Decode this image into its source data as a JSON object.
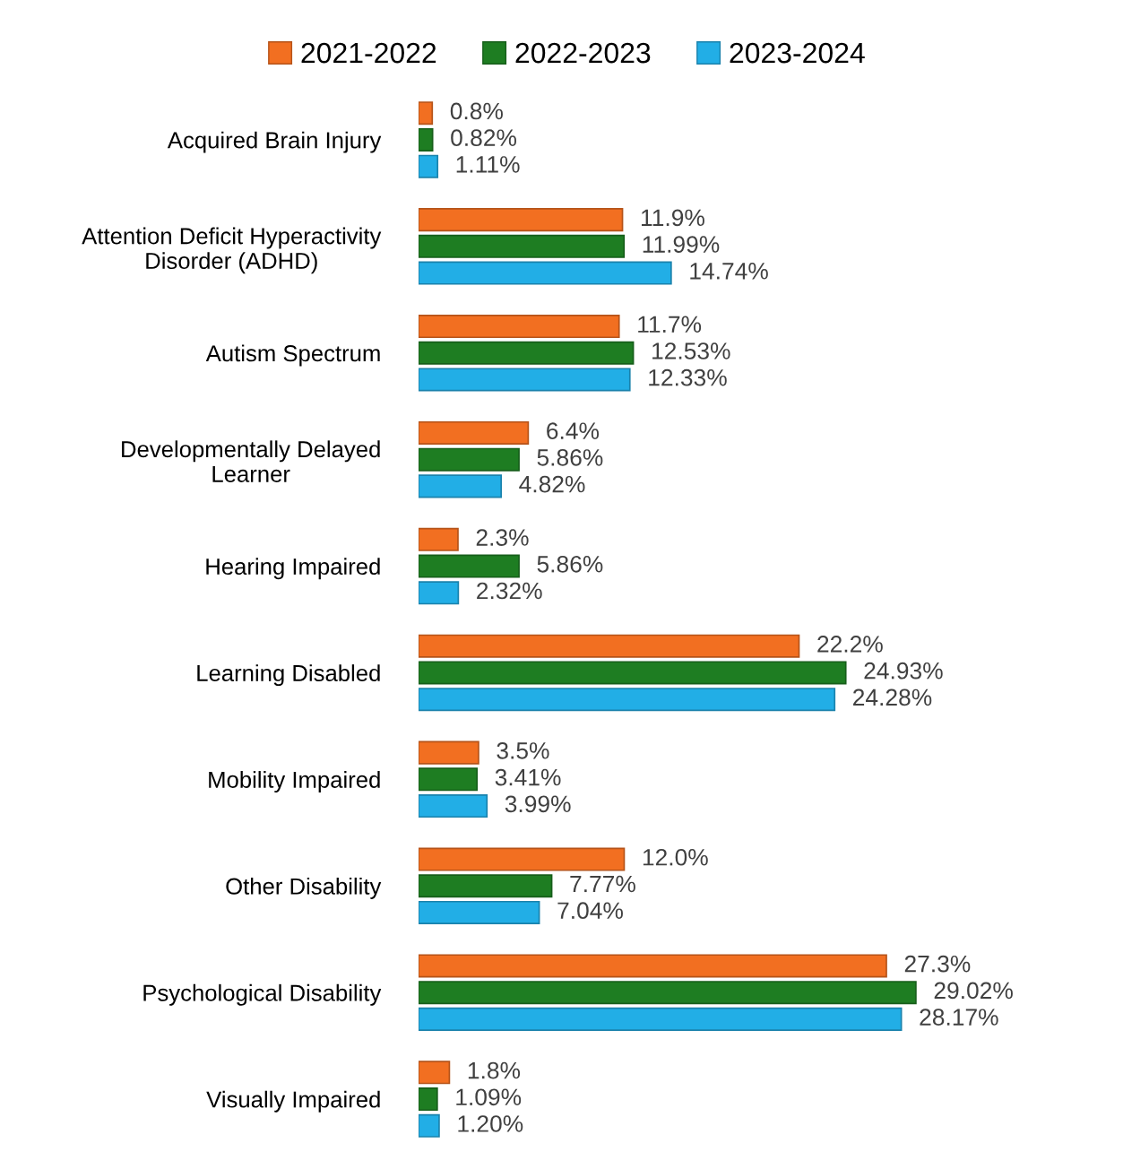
{
  "chart_data": {
    "type": "bar",
    "orientation": "horizontal",
    "legend": "top",
    "tick_labels": "y",
    "categories": [
      "Acquired Brain Injury",
      "Attention Deficit Hyperactivity\nDisorder (ADHD)",
      "Autism Spectrum",
      "Developmentally Delayed\nLearner",
      "Hearing Impaired",
      "Learning Disabled",
      "Mobility Impaired",
      "Other Disability",
      "Psychological Disability",
      "Visually Impaired"
    ],
    "series": [
      {
        "name": "2021-2022",
        "color": "#f26f21",
        "values": [
          0.8,
          11.9,
          11.7,
          6.4,
          2.3,
          22.2,
          3.5,
          12.0,
          27.3,
          1.8
        ],
        "value_labels": [
          "0.8%",
          "11.9%",
          "11.7%",
          "6.4%",
          "2.3%",
          "22.2%",
          "3.5%",
          "12.0%",
          "27.3%",
          "1.8%"
        ]
      },
      {
        "name": "2022-2023",
        "color": "#1e7d22",
        "values": [
          0.82,
          11.99,
          12.53,
          5.86,
          5.86,
          24.93,
          3.41,
          7.77,
          29.02,
          1.09
        ],
        "value_labels": [
          "0.82%",
          "11.99%",
          "12.53%",
          "5.86%",
          "5.86%",
          "24.93%",
          "3.41%",
          "7.77%",
          "29.02%",
          "1.09%"
        ]
      },
      {
        "name": "2023-2024",
        "color": "#22aee6",
        "values": [
          1.11,
          14.74,
          12.33,
          4.82,
          2.32,
          24.28,
          3.99,
          7.04,
          28.17,
          1.2
        ],
        "value_labels": [
          "1.11%",
          "14.74%",
          "12.33%",
          "4.82%",
          "2.32%",
          "24.28%",
          "3.99%",
          "7.04%",
          "28.17%",
          "1.20%"
        ]
      }
    ]
  }
}
